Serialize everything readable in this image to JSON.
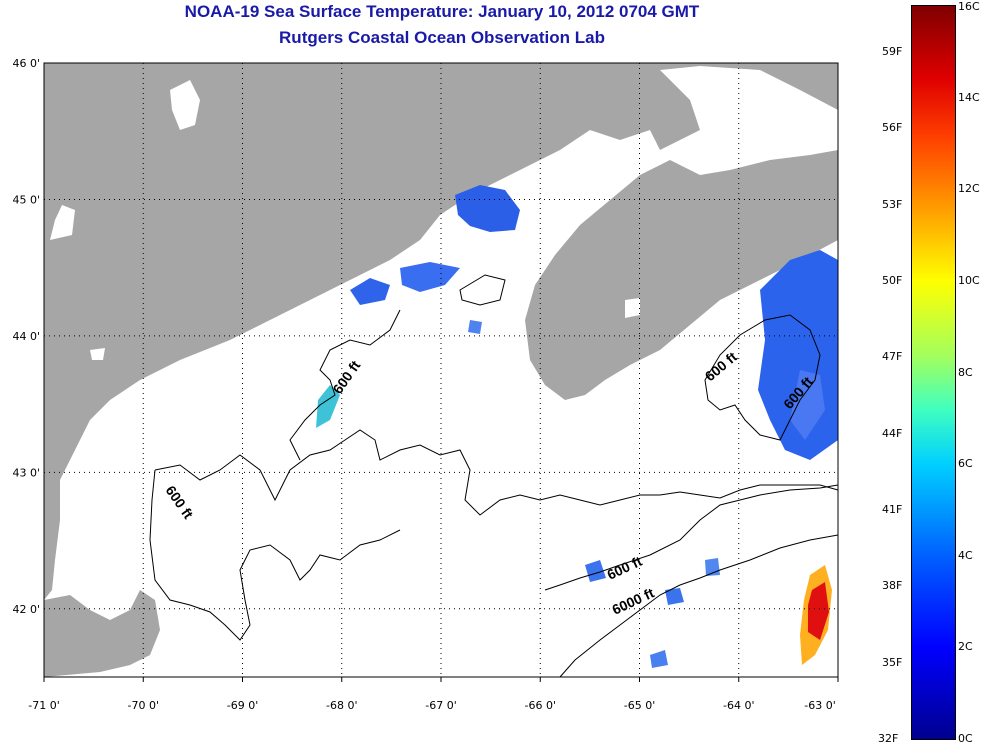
{
  "title": {
    "line1": "NOAA-19 Sea Surface Temperature:  January 10, 2012 0704 GMT",
    "line2": "Rutgers Coastal Ocean Observation Lab"
  },
  "map": {
    "lon_labels": [
      "-71 0'",
      "-70 0'",
      "-69 0'",
      "-68 0'",
      "-67 0'",
      "-66 0'",
      "-65 0'",
      "-64 0'",
      "-63 0'"
    ],
    "lat_labels": [
      "46 0'",
      "45 0'",
      "44 0'",
      "43 0'",
      "42 0'"
    ],
    "lon_range": [
      -71,
      -63
    ],
    "lat_range": [
      41.5,
      46
    ],
    "land_color": "#a6a6a6",
    "contour_labels": [
      "600 ft",
      "600 ft",
      "600 ft",
      "600 ft",
      "600 ft",
      "6000 ft"
    ]
  },
  "colorbar": {
    "celsius": [
      "16C",
      "14C",
      "12C",
      "10C",
      "8C",
      "6C",
      "4C",
      "2C",
      "0C"
    ],
    "fahrenheit": [
      "59F",
      "56F",
      "53F",
      "50F",
      "47F",
      "44F",
      "41F",
      "38F",
      "35F",
      "32F"
    ],
    "range_c": [
      0,
      16
    ]
  }
}
